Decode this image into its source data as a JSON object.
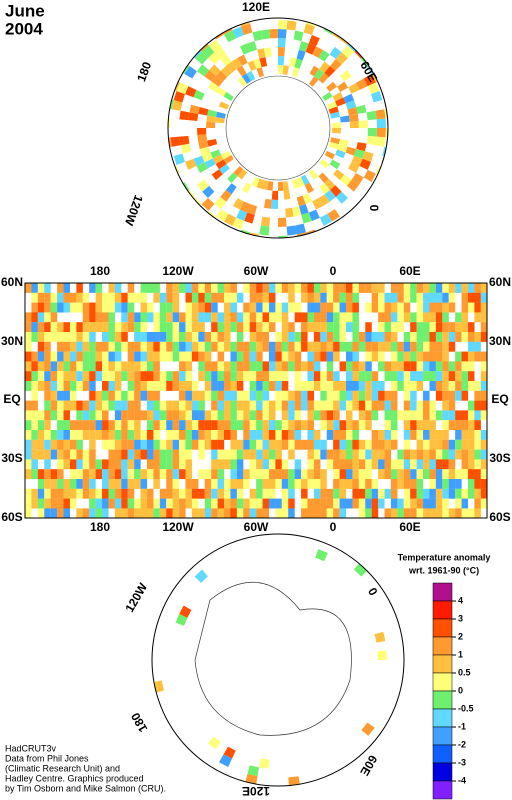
{
  "title": [
    "June",
    "2004"
  ],
  "north_polar": {
    "labels": [
      "120E",
      "60E",
      "0",
      "120W",
      "180"
    ]
  },
  "map": {
    "top_lon": [
      "180",
      "120W",
      "60W",
      "0",
      "60E"
    ],
    "bottom_lon": [
      "180",
      "120W",
      "60W",
      "0",
      "60E"
    ],
    "left_lat": [
      "60N",
      "30N",
      "EQ",
      "30S",
      "60S"
    ],
    "right_lat": [
      "60N",
      "30N",
      "EQ",
      "30S",
      "60S"
    ]
  },
  "south_polar": {
    "labels": [
      "120W",
      "0",
      "60E",
      "180",
      "120E"
    ]
  },
  "legend": {
    "title": [
      "Temperature anomaly",
      "wrt. 1961-90  (°C)"
    ],
    "colors": [
      "#b0108c",
      "#ff1a00",
      "#ff5000",
      "#ff9a30",
      "#ffc040",
      "#ffff78",
      "#6ef06e",
      "#60d8ff",
      "#40a0ff",
      "#1060ff",
      "#0000e0",
      "#8020ff"
    ],
    "ticks": [
      4,
      3,
      2,
      1,
      0.5,
      0,
      -0.5,
      -1,
      -2,
      -3,
      -4
    ]
  },
  "credits": [
    "HadCRUT3v",
    "Data from Phil Jones",
    "(Climatic Research Unit) and",
    "Hadley Centre.  Graphics produced",
    "by Tim Osborn and Mike Salmon (CRU)."
  ]
}
